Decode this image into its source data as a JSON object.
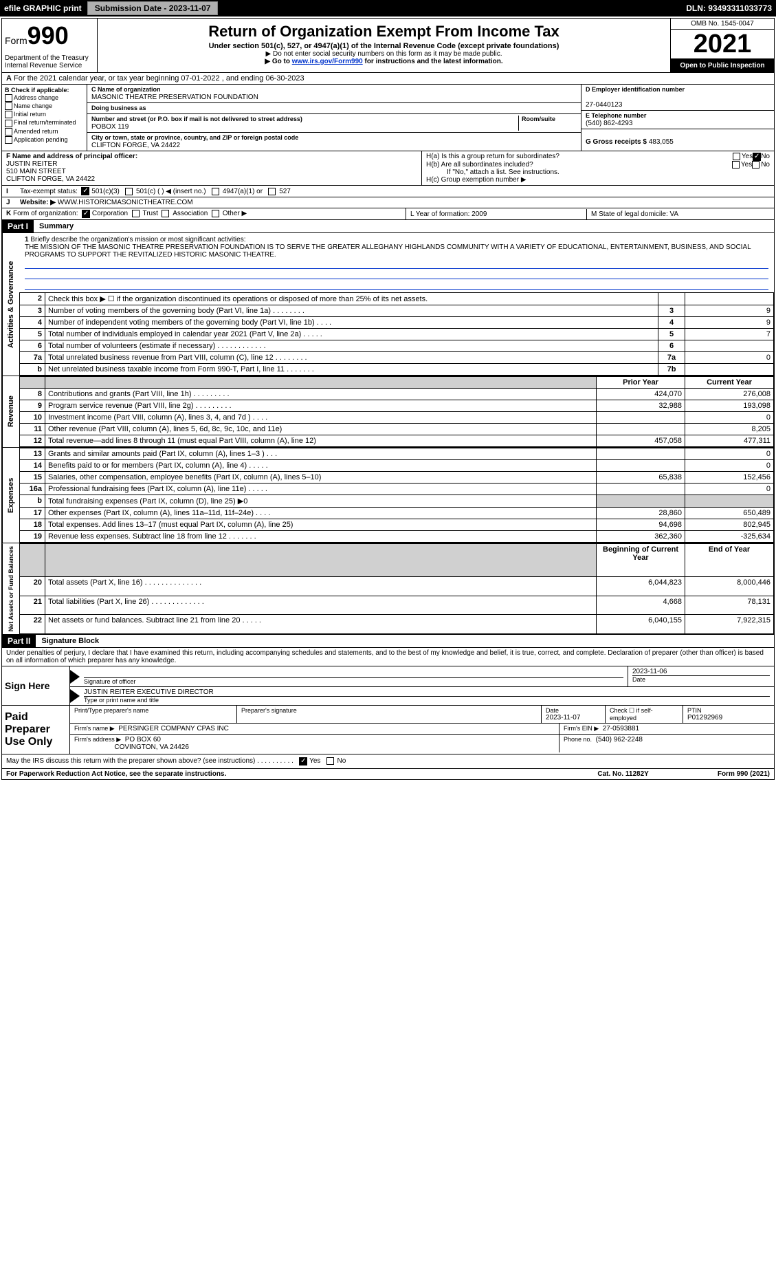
{
  "topbar": {
    "efile": "efile GRAPHIC print",
    "submission_label": "Submission Date - 2023-11-07",
    "dln": "DLN: 93493311033773"
  },
  "header": {
    "form_label": "Form",
    "form_number": "990",
    "title": "Return of Organization Exempt From Income Tax",
    "subtitle": "Under section 501(c), 527, or 4947(a)(1) of the Internal Revenue Code (except private foundations)",
    "note1": "▶ Do not enter social security numbers on this form as it may be made public.",
    "note2_prefix": "▶ Go to ",
    "note2_link": "www.irs.gov/Form990",
    "note2_suffix": " for instructions and the latest information.",
    "dept1": "Department of the Treasury",
    "dept2": "Internal Revenue Service",
    "omb": "OMB No. 1545-0047",
    "year": "2021",
    "open": "Open to Public Inspection"
  },
  "row_a": {
    "label": "A",
    "text": "For the 2021 calendar year, or tax year beginning 07-01-2022   , and ending 06-30-2023"
  },
  "section_b": {
    "title": "B Check if applicable:",
    "items": [
      "Address change",
      "Name change",
      "Initial return",
      "Final return/terminated",
      "Amended return",
      "Application pending"
    ]
  },
  "section_c": {
    "name_label": "C Name of organization",
    "name": "MASONIC THEATRE PRESERVATION FOUNDATION",
    "dba_label": "Doing business as",
    "street_label": "Number and street (or P.O. box if mail is not delivered to street address)",
    "room_label": "Room/suite",
    "street": "POBOX 119",
    "city_label": "City or town, state or province, country, and ZIP or foreign postal code",
    "city": "CLIFTON FORGE, VA  24422"
  },
  "section_d": {
    "ein_label": "D Employer identification number",
    "ein": "27-0440123",
    "phone_label": "E Telephone number",
    "phone": "(540) 862-4293",
    "receipts_label": "G Gross receipts $",
    "receipts": "483,055"
  },
  "section_f": {
    "label": "F Name and address of principal officer:",
    "name": "JUSTIN REITER",
    "street": "510 MAIN STREET",
    "city": "CLIFTON FORGE, VA  24422"
  },
  "section_h": {
    "a": "H(a)  Is this a group return for subordinates?",
    "b": "H(b)  Are all subordinates included?",
    "b_note": "If \"No,\" attach a list. See instructions.",
    "c": "H(c)  Group exemption number ▶",
    "yes": "Yes",
    "no_checked": "No",
    "no": "No"
  },
  "row_i": {
    "label": "I",
    "text": "Tax-exempt status:",
    "opts": [
      "501(c)(3)",
      "501(c) (  ) ◀ (insert no.)",
      "4947(a)(1) or",
      "527"
    ]
  },
  "row_j": {
    "label": "J",
    "text": "Website: ▶",
    "val": "WWW.HISTORICMASONICTHEATRE.COM"
  },
  "row_k": {
    "label": "K",
    "text": "Form of organization:",
    "opts": [
      "Corporation",
      "Trust",
      "Association",
      "Other ▶"
    ]
  },
  "row_l": {
    "l": "L Year of formation: 2009",
    "m": "M State of legal domicile: VA"
  },
  "part1": {
    "header": "Part I",
    "title": "Summary",
    "line1_label": "1",
    "line1_text": "Briefly describe the organization's mission or most significant activities:",
    "mission": "THE MISSION OF THE MASONIC THEATRE PRESERVATION FOUNDATION IS TO SERVE THE GREATER ALLEGHANY HIGHLANDS COMMUNITY WITH A VARIETY OF EDUCATIONAL, ENTERTAINMENT, BUSINESS, AND SOCIAL PROGRAMS TO SUPPORT THE REVITALIZED HISTORIC MASONIC THEATRE.",
    "sections": {
      "gov": {
        "label": "Activities & Governance",
        "rows": [
          {
            "n": "2",
            "d": "Check this box ▶ ☐ if the organization discontinued its operations or disposed of more than 25% of its net assets.",
            "b": "",
            "v": ""
          },
          {
            "n": "3",
            "d": "Number of voting members of the governing body (Part VI, line 1a)  .    .    .    .    .    .    .    .",
            "b": "3",
            "v": "9"
          },
          {
            "n": "4",
            "d": "Number of independent voting members of the governing body (Part VI, line 1b)  .    .    .    .",
            "b": "4",
            "v": "9"
          },
          {
            "n": "5",
            "d": "Total number of individuals employed in calendar year 2021 (Part V, line 2a)  .    .    .    .    .",
            "b": "5",
            "v": "7"
          },
          {
            "n": "6",
            "d": "Total number of volunteers (estimate if necessary)   .    .    .    .    .    .    .    .    .    .    .    .",
            "b": "6",
            "v": ""
          },
          {
            "n": "7a",
            "d": "Total unrelated business revenue from Part VIII, column (C), line 12  .    .    .    .    .    .    .    .",
            "b": "7a",
            "v": "0"
          },
          {
            "n": "b",
            "d": "Net unrelated business taxable income from Form 990-T, Part I, line 11  .    .    .    .    .    .    .",
            "b": "7b",
            "v": ""
          }
        ]
      },
      "rev": {
        "label": "Revenue",
        "head_prior": "Prior Year",
        "head_curr": "Current Year",
        "rows": [
          {
            "n": "8",
            "d": "Contributions and grants (Part VIII, line 1h)  .    .    .    .    .    .    .    .    .",
            "p": "424,070",
            "c": "276,008"
          },
          {
            "n": "9",
            "d": "Program service revenue (Part VIII, line 2g)  .    .    .    .    .    .    .    .    .",
            "p": "32,988",
            "c": "193,098"
          },
          {
            "n": "10",
            "d": "Investment income (Part VIII, column (A), lines 3, 4, and 7d )  .    .    .    .",
            "p": "",
            "c": "0"
          },
          {
            "n": "11",
            "d": "Other revenue (Part VIII, column (A), lines 5, 6d, 8c, 9c, 10c, and 11e)",
            "p": "",
            "c": "8,205"
          },
          {
            "n": "12",
            "d": "Total revenue—add lines 8 through 11 (must equal Part VIII, column (A), line 12)",
            "p": "457,058",
            "c": "477,311"
          }
        ]
      },
      "exp": {
        "label": "Expenses",
        "rows": [
          {
            "n": "13",
            "d": "Grants and similar amounts paid (Part IX, column (A), lines 1–3 )  .    .    .",
            "p": "",
            "c": "0"
          },
          {
            "n": "14",
            "d": "Benefits paid to or for members (Part IX, column (A), line 4)  .    .    .    .    .",
            "p": "",
            "c": "0"
          },
          {
            "n": "15",
            "d": "Salaries, other compensation, employee benefits (Part IX, column (A), lines 5–10)",
            "p": "65,838",
            "c": "152,456"
          },
          {
            "n": "16a",
            "d": "Professional fundraising fees (Part IX, column (A), line 11e)  .    .    .    .    .",
            "p": "",
            "c": "0"
          },
          {
            "n": "b",
            "d": "Total fundraising expenses (Part IX, column (D), line 25) ▶0",
            "p": "grey",
            "c": "grey"
          },
          {
            "n": "17",
            "d": "Other expenses (Part IX, column (A), lines 11a–11d, 11f–24e)  .    .    .    .",
            "p": "28,860",
            "c": "650,489"
          },
          {
            "n": "18",
            "d": "Total expenses. Add lines 13–17 (must equal Part IX, column (A), line 25)",
            "p": "94,698",
            "c": "802,945"
          },
          {
            "n": "19",
            "d": "Revenue less expenses. Subtract line 18 from line 12  .    .    .    .    .    .    .",
            "p": "362,360",
            "c": "-325,634"
          }
        ]
      },
      "net": {
        "label": "Net Assets or Fund Balances",
        "head_begin": "Beginning of Current Year",
        "head_end": "End of Year",
        "rows": [
          {
            "n": "20",
            "d": "Total assets (Part X, line 16)  .    .    .    .    .    .    .    .    .    .    .    .    .    .",
            "p": "6,044,823",
            "c": "8,000,446"
          },
          {
            "n": "21",
            "d": "Total liabilities (Part X, line 26)  .    .    .    .    .    .    .    .    .    .    .    .    .",
            "p": "4,668",
            "c": "78,131"
          },
          {
            "n": "22",
            "d": "Net assets or fund balances. Subtract line 21 from line 20  .    .    .    .    .",
            "p": "6,040,155",
            "c": "7,922,315"
          }
        ]
      }
    }
  },
  "part2": {
    "header": "Part II",
    "title": "Signature Block",
    "penalty": "Under penalties of perjury, I declare that I have examined this return, including accompanying schedules and statements, and to the best of my knowledge and belief, it is true, correct, and complete. Declaration of preparer (other than officer) is based on all information of which preparer has any knowledge."
  },
  "sign": {
    "label": "Sign Here",
    "sig_label": "Signature of officer",
    "date": "2023-11-06",
    "date_label": "Date",
    "name": "JUSTIN REITER  EXECUTIVE DIRECTOR",
    "name_label": "Type or print name and title"
  },
  "preparer": {
    "label": "Paid Preparer Use Only",
    "print_label": "Print/Type preparer's name",
    "sig_label": "Preparer's signature",
    "date_label": "Date",
    "date": "2023-11-07",
    "check_label": "Check ☐ if self-employed",
    "ptin_label": "PTIN",
    "ptin": "P01292969",
    "firm_name_label": "Firm's name    ▶",
    "firm_name": "PERSINGER COMPANY CPAS INC",
    "firm_ein_label": "Firm's EIN ▶",
    "firm_ein": "27-0593881",
    "firm_addr_label": "Firm's address ▶",
    "firm_addr1": "PO BOX 60",
    "firm_addr2": "COVINGTON, VA  24426",
    "phone_label": "Phone no.",
    "phone": "(540) 962-2248"
  },
  "discuss": {
    "text": "May the IRS discuss this return with the preparer shown above? (see instructions)   .     .     .     .     .     .     .     .     .     .",
    "yes": "Yes",
    "no": "No"
  },
  "footer": {
    "left": "For Paperwork Reduction Act Notice, see the separate instructions.",
    "mid": "Cat. No. 11282Y",
    "right_form": "Form ",
    "right_num": "990",
    "right_year": " (2021)"
  }
}
